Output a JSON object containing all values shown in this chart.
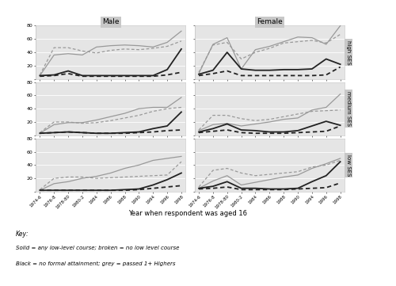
{
  "x_labels": [
    "1974-6",
    "1976-8",
    "1978-80",
    "1980-2",
    "1984",
    "1986",
    "1988",
    "1990",
    "1994",
    "1996",
    "1998"
  ],
  "x_vals": [
    0,
    1,
    2,
    3,
    4,
    5,
    6,
    7,
    8,
    9,
    10
  ],
  "panel_titles_col": [
    "Male",
    "Female"
  ],
  "panel_labels_row": [
    "high SES",
    "medium SES",
    "low SES"
  ],
  "lines": {
    "male_high": {
      "grey_solid": [
        5,
        36,
        38,
        36,
        48,
        50,
        51,
        50,
        48,
        55,
        72
      ],
      "grey_dashed": [
        6,
        47,
        47,
        42,
        39,
        43,
        45,
        44,
        46,
        49,
        57
      ],
      "black_solid": [
        5,
        6,
        12,
        5,
        5,
        5,
        5,
        5,
        5,
        14,
        45
      ],
      "black_dashed": [
        4,
        5,
        8,
        4,
        4,
        4,
        4,
        4,
        4,
        6,
        10
      ]
    },
    "female_high": {
      "grey_solid": [
        8,
        52,
        62,
        15,
        44,
        49,
        56,
        63,
        62,
        52,
        80
      ],
      "grey_dashed": [
        10,
        51,
        55,
        30,
        40,
        46,
        54,
        56,
        58,
        54,
        67
      ],
      "black_solid": [
        7,
        13,
        40,
        15,
        13,
        13,
        14,
        14,
        15,
        30,
        22
      ],
      "black_dashed": [
        5,
        8,
        12,
        5,
        5,
        5,
        5,
        5,
        5,
        6,
        18
      ]
    },
    "male_med": {
      "grey_solid": [
        3,
        16,
        19,
        19,
        23,
        28,
        33,
        40,
        42,
        42,
        57
      ],
      "grey_dashed": [
        4,
        20,
        20,
        18,
        19,
        22,
        26,
        30,
        36,
        40,
        42
      ],
      "black_solid": [
        3,
        4,
        5,
        4,
        3,
        3,
        4,
        5,
        10,
        14,
        35
      ],
      "black_dashed": [
        3,
        4,
        5,
        4,
        3,
        3,
        3,
        4,
        5,
        7,
        8
      ]
    },
    "female_med": {
      "grey_solid": [
        7,
        16,
        18,
        14,
        17,
        20,
        24,
        26,
        38,
        42,
        62
      ],
      "grey_dashed": [
        8,
        30,
        30,
        25,
        22,
        24,
        28,
        32,
        36,
        37,
        38
      ],
      "black_solid": [
        5,
        10,
        17,
        8,
        7,
        5,
        5,
        7,
        14,
        21,
        15
      ],
      "black_dashed": [
        4,
        6,
        8,
        4,
        3,
        3,
        3,
        4,
        5,
        6,
        14
      ]
    },
    "male_low": {
      "grey_solid": [
        2,
        12,
        15,
        20,
        23,
        28,
        35,
        40,
        47,
        50,
        53
      ],
      "grey_dashed": [
        3,
        20,
        22,
        22,
        20,
        21,
        22,
        23,
        24,
        25,
        45
      ],
      "black_solid": [
        2,
        2,
        2,
        2,
        2,
        2,
        3,
        4,
        10,
        18,
        28
      ],
      "black_dashed": [
        2,
        2,
        2,
        2,
        2,
        2,
        2,
        3,
        5,
        7,
        9
      ]
    },
    "female_low": {
      "grey_solid": [
        5,
        16,
        24,
        10,
        14,
        18,
        22,
        25,
        35,
        42,
        50
      ],
      "grey_dashed": [
        7,
        32,
        35,
        28,
        24,
        26,
        28,
        30,
        37,
        40,
        47
      ],
      "black_solid": [
        5,
        8,
        15,
        5,
        5,
        4,
        4,
        5,
        15,
        24,
        45
      ],
      "black_dashed": [
        4,
        5,
        7,
        3,
        3,
        3,
        3,
        4,
        5,
        6,
        13
      ]
    }
  },
  "grey_color": "#999999",
  "black_color": "#222222",
  "bg_panel": "#e5e5e5",
  "bg_label": "#c8c8c8",
  "xlabel": "Year when respondent was aged 16",
  "ylim": [
    0,
    80
  ],
  "yticks": [
    0,
    20,
    40,
    60,
    80
  ],
  "key_text": [
    "Key:",
    "Solid = any low-level course; broken = no low level course",
    "Black = no formal attainment; grey = passed 1+ Highers"
  ]
}
